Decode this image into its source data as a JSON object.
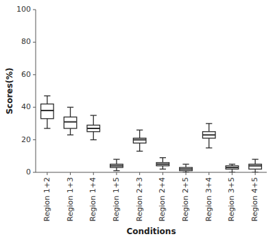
{
  "chart_data": {
    "type": "box",
    "categories": [
      "Region 1+2",
      "Region 1+3",
      "Region 1+4",
      "Region 1+5",
      "Region 2+3",
      "Region 2+4",
      "Region 2+5",
      "Region 3+4",
      "Region 3+5",
      "Region 4+5"
    ],
    "boxes": [
      {
        "whislo": 27,
        "q1": 33,
        "med": 38,
        "q3": 42,
        "whishi": 47
      },
      {
        "whislo": 23,
        "q1": 27,
        "med": 31,
        "q3": 34,
        "whishi": 40
      },
      {
        "whislo": 20,
        "q1": 25,
        "med": 27,
        "q3": 29,
        "whishi": 35
      },
      {
        "whislo": 1,
        "q1": 3,
        "med": 4,
        "q3": 5,
        "whishi": 8
      },
      {
        "whislo": 13,
        "q1": 18,
        "med": 20,
        "q3": 21,
        "whishi": 26
      },
      {
        "whislo": 2,
        "q1": 4,
        "med": 5,
        "q3": 6,
        "whishi": 9
      },
      {
        "whislo": 0,
        "q1": 1,
        "med": 2,
        "q3": 3,
        "whishi": 5
      },
      {
        "whislo": 15,
        "q1": 21,
        "med": 23,
        "q3": 25,
        "whishi": 30
      },
      {
        "whislo": 0,
        "q1": 2,
        "med": 3,
        "q3": 4,
        "whishi": 5
      },
      {
        "whislo": 0,
        "q1": 2,
        "med": 4,
        "q3": 5,
        "whishi": 8
      }
    ],
    "color": "#2b2b2b",
    "xlabel": "Conditions",
    "ylabel": "Scores(%)",
    "ylim": [
      0,
      100
    ],
    "yticks": [
      0,
      20,
      40,
      60,
      80,
      100
    ],
    "grid": false
  }
}
